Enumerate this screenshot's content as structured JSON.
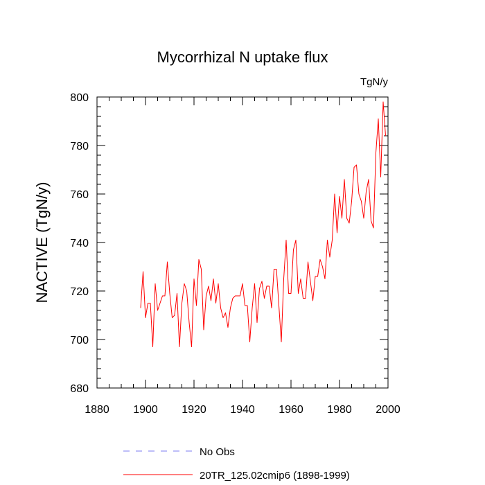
{
  "chart_data": {
    "type": "line",
    "title": "Mycorrhizal N uptake flux",
    "units_label": "TgN/y",
    "ylabel": "NACTIVE  (TgN/y)",
    "xlabel": "",
    "xlim": [
      1880,
      2000
    ],
    "ylim": [
      680,
      800
    ],
    "x_ticks": [
      1880,
      1900,
      1920,
      1940,
      1960,
      1980,
      2000
    ],
    "y_ticks": [
      680,
      700,
      720,
      740,
      760,
      780,
      800
    ],
    "grid": false,
    "legend_position": "bottom",
    "legend": [
      {
        "label": "No Obs",
        "color": "#7b7bf2",
        "style": "dashed"
      },
      {
        "label": "20TR_125.02cmip6 (1898-1999)",
        "color": "#ff0000",
        "style": "solid"
      }
    ],
    "series": [
      {
        "name": "20TR_125.02cmip6 (1898-1999)",
        "color": "#ff0000",
        "x": [
          1898,
          1899,
          1900,
          1901,
          1902,
          1903,
          1904,
          1905,
          1906,
          1907,
          1908,
          1909,
          1910,
          1911,
          1912,
          1913,
          1914,
          1915,
          1916,
          1917,
          1918,
          1919,
          1920,
          1921,
          1922,
          1923,
          1924,
          1925,
          1926,
          1927,
          1928,
          1929,
          1930,
          1931,
          1932,
          1933,
          1934,
          1935,
          1936,
          1937,
          1938,
          1939,
          1940,
          1941,
          1942,
          1943,
          1944,
          1945,
          1946,
          1947,
          1948,
          1949,
          1950,
          1951,
          1952,
          1953,
          1954,
          1955,
          1956,
          1957,
          1958,
          1959,
          1960,
          1961,
          1962,
          1963,
          1964,
          1965,
          1966,
          1967,
          1968,
          1969,
          1970,
          1971,
          1972,
          1973,
          1974,
          1975,
          1976,
          1977,
          1978,
          1979,
          1980,
          1981,
          1982,
          1983,
          1984,
          1985,
          1986,
          1987,
          1988,
          1989,
          1990,
          1991,
          1992,
          1993,
          1994,
          1995,
          1996,
          1997,
          1998,
          1999
        ],
        "values": [
          713,
          728,
          709,
          715,
          715,
          697,
          723,
          712,
          715,
          718,
          718,
          732,
          719,
          709,
          710,
          719,
          697,
          715,
          723,
          720,
          707,
          697,
          725,
          714,
          733,
          729,
          704,
          718,
          722,
          716,
          725,
          715,
          723,
          713,
          709,
          711,
          705,
          713,
          717,
          718,
          718,
          718,
          723,
          714,
          714,
          699,
          713,
          723,
          707,
          721,
          724,
          717,
          722,
          722,
          713,
          729,
          729,
          714,
          699,
          725,
          741,
          719,
          719,
          737,
          741,
          719,
          725,
          717,
          717,
          732,
          724,
          716,
          726,
          726,
          733,
          730,
          725,
          741,
          734,
          741,
          760,
          744,
          759,
          750,
          766,
          750,
          748,
          757,
          771,
          772,
          760,
          757,
          750,
          761,
          766,
          749,
          746,
          777,
          791,
          767,
          798,
          784
        ]
      }
    ]
  }
}
